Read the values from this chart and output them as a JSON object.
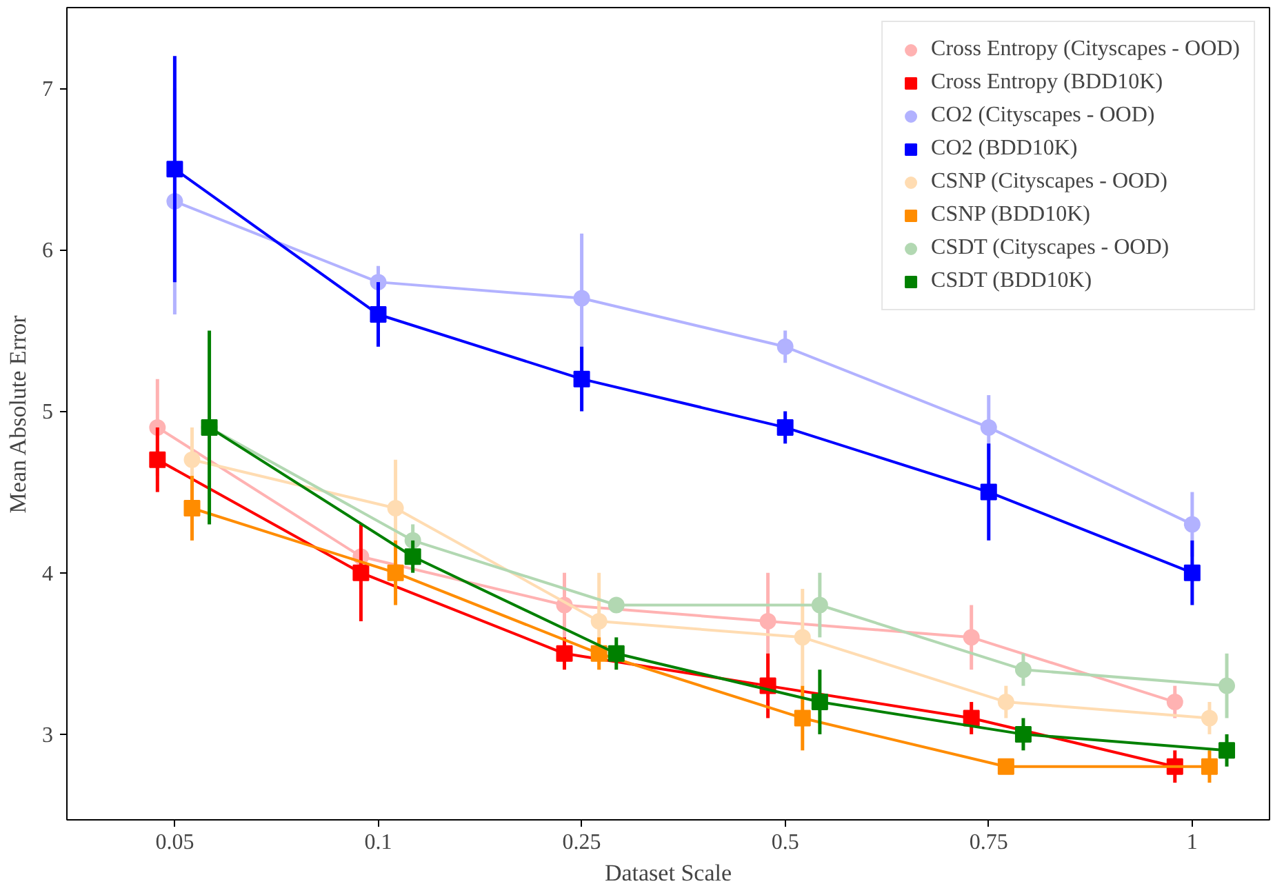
{
  "chart_data": {
    "type": "line",
    "xlabel": "Dataset Scale",
    "ylabel": "Mean Absolute Error",
    "categories": [
      "0.05",
      "0.1",
      "0.25",
      "0.5",
      "0.75",
      "1"
    ],
    "ylim": [
      2.47,
      7.5
    ],
    "yticks": [
      3,
      4,
      5,
      6,
      7
    ],
    "grid": false,
    "legend": "top right",
    "line_style": "solid",
    "series": [
      {
        "name": "Cross Entropy (Cityscapes - OOD)",
        "color": "#ffb2b2",
        "marker": "circle",
        "values": [
          4.9,
          4.1,
          3.8,
          3.7,
          3.6,
          3.2
        ],
        "errors": [
          0.3,
          0.2,
          0.2,
          0.3,
          0.2,
          0.1
        ]
      },
      {
        "name": "Cross Entropy (BDD10K)",
        "color": "#ff0000",
        "marker": "square",
        "values": [
          4.7,
          4.0,
          3.5,
          3.3,
          3.1,
          2.8
        ],
        "errors": [
          0.2,
          0.3,
          0.1,
          0.2,
          0.1,
          0.1
        ]
      },
      {
        "name": "CO2 (Cityscapes - OOD)",
        "color": "#b2b2ff",
        "marker": "circle",
        "values": [
          6.3,
          5.8,
          5.7,
          5.4,
          4.9,
          4.3
        ],
        "errors": [
          0.7,
          0.1,
          0.4,
          0.1,
          0.2,
          0.2
        ]
      },
      {
        "name": "CO2 (BDD10K)",
        "color": "#0000ff",
        "marker": "square",
        "values": [
          6.5,
          5.6,
          5.2,
          4.9,
          4.5,
          4.0
        ],
        "errors": [
          0.7,
          0.2,
          0.2,
          0.1,
          0.3,
          0.2
        ]
      },
      {
        "name": "CSNP (Cityscapes - OOD)",
        "color": "#ffdcb2",
        "marker": "circle",
        "values": [
          4.7,
          4.4,
          3.7,
          3.6,
          3.2,
          3.1
        ],
        "errors": [
          0.2,
          0.3,
          0.3,
          0.3,
          0.1,
          0.1
        ]
      },
      {
        "name": "CSNP (BDD10K)",
        "color": "#ff8c00",
        "marker": "square",
        "values": [
          4.4,
          4.0,
          3.5,
          3.1,
          2.8,
          2.8
        ],
        "errors": [
          0.2,
          0.2,
          0.1,
          0.2,
          null,
          0.1
        ]
      },
      {
        "name": "CSDT (Cityscapes - OOD)",
        "color": "#b2d8b2",
        "marker": "circle",
        "values": [
          4.9,
          4.2,
          3.8,
          3.8,
          3.4,
          3.3
        ],
        "errors": [
          null,
          0.1,
          null,
          0.2,
          0.1,
          0.2
        ]
      },
      {
        "name": "CSDT (BDD10K)",
        "color": "#008000",
        "marker": "square",
        "values": [
          4.9,
          4.1,
          3.5,
          3.2,
          3.0,
          2.9
        ],
        "errors": [
          0.6,
          0.1,
          0.1,
          0.2,
          0.1,
          0.1
        ]
      }
    ]
  }
}
